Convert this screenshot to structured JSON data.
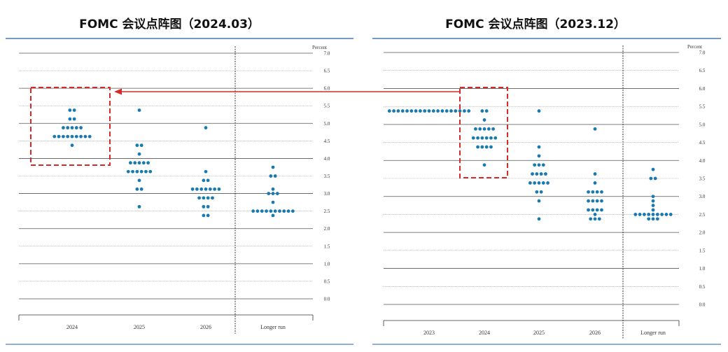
{
  "chart_data": [
    {
      "type": "dot",
      "title": "FOMC 会议点阵图（2024.03）",
      "y_label": "Percent",
      "categories": [
        "2024",
        "2025",
        "2026",
        "Longer run"
      ],
      "color": "#1a7ab0",
      "ylim": [
        0,
        7
      ],
      "yticks": [
        {
          "value": 0,
          "label": "0.0"
        },
        0.5,
        {
          "value": 1,
          "label": "1.0"
        },
        1.5,
        {
          "value": 2,
          "label": "2.0"
        },
        2.5,
        {
          "value": 3,
          "label": "3.0"
        },
        3.5,
        {
          "value": 4,
          "label": "4.0"
        },
        4.5,
        {
          "value": 5,
          "label": "5.0"
        },
        5.5,
        {
          "value": 6,
          "label": "6.0"
        },
        6.5,
        {
          "value": 7,
          "label": "7.0"
        }
      ],
      "values": [
        [
          5.375,
          5.375,
          5.125,
          5.125,
          4.875,
          4.875,
          4.875,
          4.875,
          4.875,
          4.625,
          4.625,
          4.625,
          4.625,
          4.625,
          4.625,
          4.625,
          4.625,
          4.625,
          4.375
        ],
        [
          5.375,
          4.375,
          4.375,
          4.125,
          3.875,
          3.875,
          3.875,
          3.875,
          3.875,
          3.625,
          3.625,
          3.625,
          3.625,
          3.625,
          3.625,
          3.375,
          3.125,
          3.125,
          2.625
        ],
        [
          4.875,
          3.625,
          3.375,
          3.375,
          3.125,
          3.125,
          3.125,
          3.125,
          3.125,
          3.125,
          3.125,
          2.875,
          2.875,
          2.875,
          2.875,
          2.625,
          2.625,
          2.375,
          2.375
        ],
        [
          3.75,
          3.5,
          3.5,
          3.125,
          3,
          3,
          3,
          2.75,
          2.5,
          2.5,
          2.5,
          2.5,
          2.5,
          2.5,
          2.5,
          2.5,
          2.5,
          2.5,
          2.375
        ]
      ]
    },
    {
      "type": "dot",
      "title": "FOMC 会议点阵图（2023.12）",
      "y_label": "Percent",
      "categories": [
        "2023",
        "2024",
        "2025",
        "2026",
        "Longer run"
      ],
      "color": "#1a7ab0",
      "ylim": [
        0,
        7
      ],
      "yticks": [
        {
          "value": 0,
          "label": "0.0"
        },
        0.5,
        {
          "value": 1,
          "label": "1.0"
        },
        1.5,
        {
          "value": 2,
          "label": "2.0"
        },
        2.5,
        {
          "value": 3,
          "label": "3.0"
        },
        3.5,
        {
          "value": 4,
          "label": "4.0"
        },
        4.5,
        {
          "value": 5,
          "label": "5.0"
        },
        5.5,
        {
          "value": 6,
          "label": "6.0"
        },
        6.5,
        {
          "value": 7,
          "label": "7.0"
        }
      ],
      "values": [
        [
          5.375,
          5.375,
          5.375,
          5.375,
          5.375,
          5.375,
          5.375,
          5.375,
          5.375,
          5.375,
          5.375,
          5.375,
          5.375,
          5.375,
          5.375,
          5.375,
          5.375,
          5.375,
          5.375
        ],
        [
          5.375,
          5.375,
          5.125,
          4.875,
          4.875,
          4.875,
          4.875,
          4.875,
          4.625,
          4.625,
          4.625,
          4.625,
          4.625,
          4.625,
          4.375,
          4.375,
          4.375,
          4.375,
          3.875
        ],
        [
          5.375,
          4.375,
          4.125,
          3.875,
          3.875,
          3.875,
          3.625,
          3.625,
          3.625,
          3.625,
          3.375,
          3.375,
          3.375,
          3.375,
          3.375,
          3.125,
          3.125,
          2.875,
          2.375
        ],
        [
          4.875,
          3.625,
          3.375,
          3.125,
          3.125,
          3.125,
          3.125,
          2.875,
          2.875,
          2.875,
          2.875,
          2.625,
          2.625,
          2.625,
          2.625,
          2.5,
          2.375,
          2.375,
          2.375
        ],
        [
          3.75,
          3.5,
          3.5,
          3,
          2.875,
          2.75,
          2.625,
          2.5,
          2.5,
          2.5,
          2.5,
          2.5,
          2.5,
          2.5,
          2.5,
          2.5,
          2.375,
          2.375,
          2.375
        ]
      ]
    }
  ]
}
